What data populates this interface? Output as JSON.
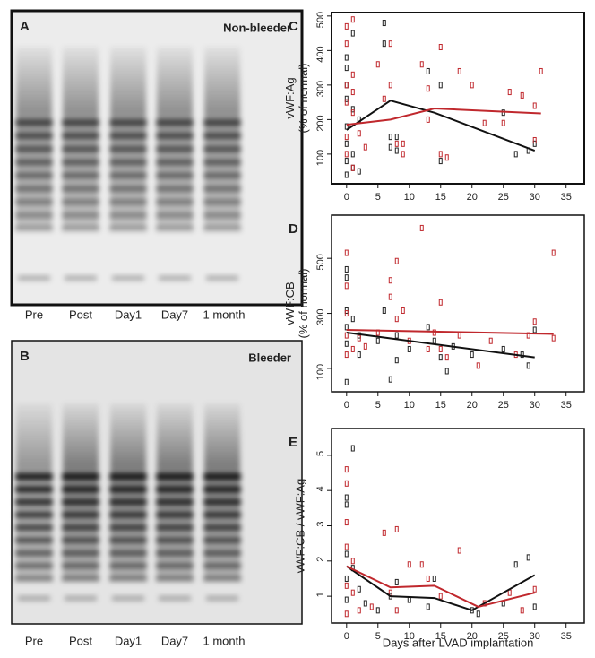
{
  "gels": [
    {
      "panel": "A",
      "title": "Non-bleeder",
      "lanes": [
        "Pre",
        "Post",
        "Day1",
        "Day7",
        "1 month"
      ]
    },
    {
      "panel": "B",
      "title": "Bleeder",
      "lanes": [
        "Pre",
        "Post",
        "Day1",
        "Day7",
        "1 month"
      ]
    }
  ],
  "chart_data": [
    {
      "type": "scatter",
      "panel": "C",
      "ylabel": [
        "vWF:Ag",
        "(% of normal)"
      ],
      "xlim": [
        -2.4,
        37.9
      ],
      "ylim": [
        14,
        510
      ],
      "xticks": [
        0,
        5,
        10,
        15,
        20,
        25,
        30,
        35
      ],
      "yticks": [
        100,
        200,
        300,
        400,
        500
      ],
      "series": [
        {
          "mode": "points",
          "color": "#222222",
          "x": [
            0,
            0,
            0,
            0,
            0,
            0,
            0,
            0,
            1,
            1,
            1,
            1,
            2,
            2,
            6,
            6,
            7,
            7,
            8,
            8,
            13,
            15,
            15,
            25,
            27,
            29,
            30
          ],
          "values": [
            40,
            80,
            130,
            180,
            260,
            300,
            350,
            380,
            60,
            100,
            230,
            450,
            50,
            200,
            480,
            420,
            120,
            150,
            150,
            110,
            340,
            80,
            300,
            220,
            100,
            110,
            130
          ]
        },
        {
          "mode": "points",
          "color": "#c0282d",
          "x": [
            0,
            0,
            0,
            0,
            0,
            0,
            1,
            1,
            1,
            1,
            1,
            2,
            3,
            5,
            6,
            7,
            7,
            8,
            9,
            9,
            12,
            13,
            13,
            15,
            15,
            16,
            18,
            20,
            22,
            26,
            28,
            30,
            31,
            30,
            25
          ],
          "values": [
            470,
            420,
            300,
            250,
            150,
            100,
            490,
            330,
            280,
            220,
            60,
            160,
            120,
            360,
            260,
            420,
            300,
            130,
            130,
            100,
            360,
            290,
            200,
            410,
            100,
            90,
            340,
            300,
            190,
            280,
            270,
            240,
            340,
            140,
            190
          ]
        },
        {
          "mode": "line",
          "color": "#111111",
          "x": [
            0,
            7,
            14,
            30
          ],
          "values": [
            170,
            255,
            220,
            110
          ]
        },
        {
          "mode": "line",
          "color": "#c0282d",
          "x": [
            0,
            7,
            14,
            31
          ],
          "values": [
            185,
            200,
            232,
            218
          ]
        }
      ]
    },
    {
      "type": "scatter",
      "panel": "D",
      "ylabel": [
        "vWF:CB",
        "(% of normal)"
      ],
      "xlim": [
        -2.4,
        37.9
      ],
      "ylim": [
        15,
        657
      ],
      "xticks": [
        0,
        5,
        10,
        15,
        20,
        25,
        30,
        35
      ],
      "yticks": [
        100,
        300,
        500
      ],
      "series": [
        {
          "mode": "points",
          "color": "#222222",
          "x": [
            0,
            0,
            0,
            0,
            0,
            0,
            1,
            2,
            2,
            5,
            6,
            7,
            8,
            8,
            10,
            13,
            14,
            15,
            16,
            17,
            20,
            25,
            28,
            29,
            30
          ],
          "values": [
            50,
            190,
            250,
            310,
            430,
            460,
            280,
            150,
            220,
            200,
            310,
            60,
            220,
            130,
            170,
            250,
            200,
            140,
            90,
            180,
            150,
            170,
            150,
            110,
            240
          ]
        },
        {
          "mode": "points",
          "color": "#c0282d",
          "x": [
            0,
            0,
            0,
            0,
            0,
            1,
            2,
            3,
            5,
            7,
            7,
            8,
            8,
            9,
            10,
            12,
            13,
            14,
            15,
            15,
            16,
            18,
            21,
            23,
            27,
            29,
            30,
            33,
            33
          ],
          "values": [
            520,
            400,
            300,
            220,
            150,
            170,
            210,
            180,
            230,
            420,
            360,
            490,
            280,
            310,
            200,
            610,
            170,
            230,
            340,
            170,
            140,
            220,
            110,
            200,
            150,
            220,
            270,
            520,
            210
          ]
        },
        {
          "mode": "line",
          "color": "#111111",
          "x": [
            0,
            30
          ],
          "values": [
            230,
            140
          ]
        },
        {
          "mode": "line",
          "color": "#c0282d",
          "x": [
            0,
            33
          ],
          "values": [
            240,
            225
          ]
        }
      ]
    },
    {
      "type": "scatter",
      "panel": "E",
      "ylabel": [
        "vWF:CB / vWF:Ag"
      ],
      "xlabel": "Days after LVAD implantation",
      "xlim": [
        -2.4,
        37.9
      ],
      "ylim": [
        0.24,
        5.76
      ],
      "xticks": [
        0,
        5,
        10,
        15,
        20,
        25,
        30,
        35
      ],
      "yticks": [
        1,
        2,
        3,
        4,
        5
      ],
      "series": [
        {
          "mode": "points",
          "color": "#222222",
          "x": [
            0,
            0,
            0,
            0,
            0,
            1,
            1,
            2,
            3,
            5,
            7,
            8,
            10,
            13,
            14,
            20,
            21,
            25,
            27,
            29,
            30
          ],
          "values": [
            3.8,
            3.6,
            2.2,
            1.5,
            0.9,
            5.2,
            1.8,
            1.2,
            0.8,
            0.6,
            1.0,
            1.4,
            0.9,
            0.7,
            1.5,
            0.6,
            0.5,
            0.8,
            1.9,
            2.1,
            0.7
          ]
        },
        {
          "mode": "points",
          "color": "#c0282d",
          "x": [
            0,
            0,
            0,
            0,
            0,
            0,
            1,
            1,
            2,
            4,
            6,
            7,
            8,
            8,
            10,
            12,
            13,
            15,
            18,
            22,
            26,
            28,
            30
          ],
          "values": [
            4.6,
            4.2,
            3.1,
            2.4,
            1.3,
            0.5,
            2.0,
            1.1,
            0.6,
            0.7,
            2.8,
            1.1,
            2.9,
            0.6,
            1.9,
            1.9,
            1.5,
            1.0,
            2.3,
            0.8,
            1.1,
            0.6,
            1.2
          ]
        },
        {
          "mode": "line",
          "color": "#111111",
          "x": [
            0,
            7,
            14,
            20,
            30
          ],
          "values": [
            1.85,
            1.0,
            0.95,
            0.6,
            1.6
          ]
        },
        {
          "mode": "line",
          "color": "#c0282d",
          "x": [
            0,
            7,
            14,
            21,
            30
          ],
          "values": [
            1.85,
            1.25,
            1.3,
            0.7,
            1.1
          ]
        }
      ]
    }
  ]
}
